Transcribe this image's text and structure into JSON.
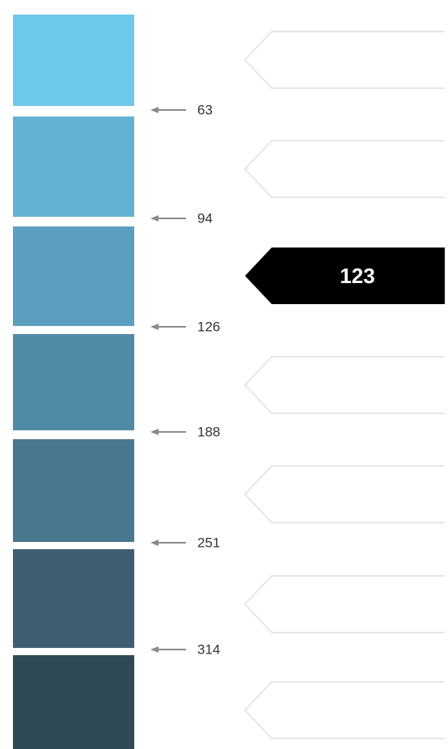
{
  "chart_data": {
    "type": "table",
    "thresholds": [
      63,
      94,
      126,
      188,
      251,
      314
    ],
    "swatch_colors": [
      "#6ec8ea",
      "#63b2d3",
      "#5a9fbf",
      "#508aa6",
      "#48788d",
      "#3d5f71",
      "#2f4955"
    ],
    "selected_value": "123",
    "selected_band_index": 2
  }
}
